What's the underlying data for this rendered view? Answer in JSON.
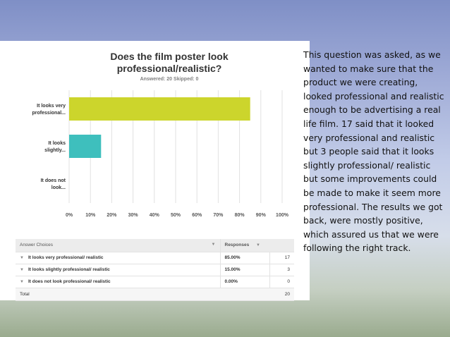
{
  "chart_data": {
    "type": "bar",
    "orientation": "horizontal",
    "title": "Does the film poster look professional/realistic?",
    "answered_text": "Answered: 20    Skipped: 0",
    "categories": [
      [
        "It looks very",
        "professional..."
      ],
      [
        "It looks",
        "slightly..."
      ],
      [
        "It does not",
        "look..."
      ]
    ],
    "values": [
      85,
      15,
      0
    ],
    "x_ticks": [
      "0%",
      "10%",
      "20%",
      "30%",
      "40%",
      "50%",
      "60%",
      "70%",
      "80%",
      "90%",
      "100%"
    ],
    "xlim": [
      0,
      100
    ],
    "bar_colors": [
      "#ccd52c",
      "#3ebfbd",
      "#cccccc"
    ],
    "grid": true
  },
  "table": {
    "headers": {
      "choice": "Answer Choices",
      "responses": "Responses"
    },
    "rows": [
      {
        "choice": "It looks very professional/ realistic",
        "percent": "85.00%",
        "count": "17"
      },
      {
        "choice": "It looks slightly professional/ realistic",
        "percent": "15.00%",
        "count": "3"
      },
      {
        "choice": "It does not look professional/ realistic",
        "percent": "0.00%",
        "count": "0"
      }
    ],
    "total_label": "Total",
    "total_count": "20"
  },
  "commentary": "This question was asked, as we wanted to make sure that the product we were creating, looked professional and realistic enough to be advertising a real life film. 17 said that it looked very professional and realistic but 3 people said that it looks slightly professional/ realistic but some improvements could be made to make it seem more professional. The results we got back, were mostly positive, which assured us that we were following the right track."
}
